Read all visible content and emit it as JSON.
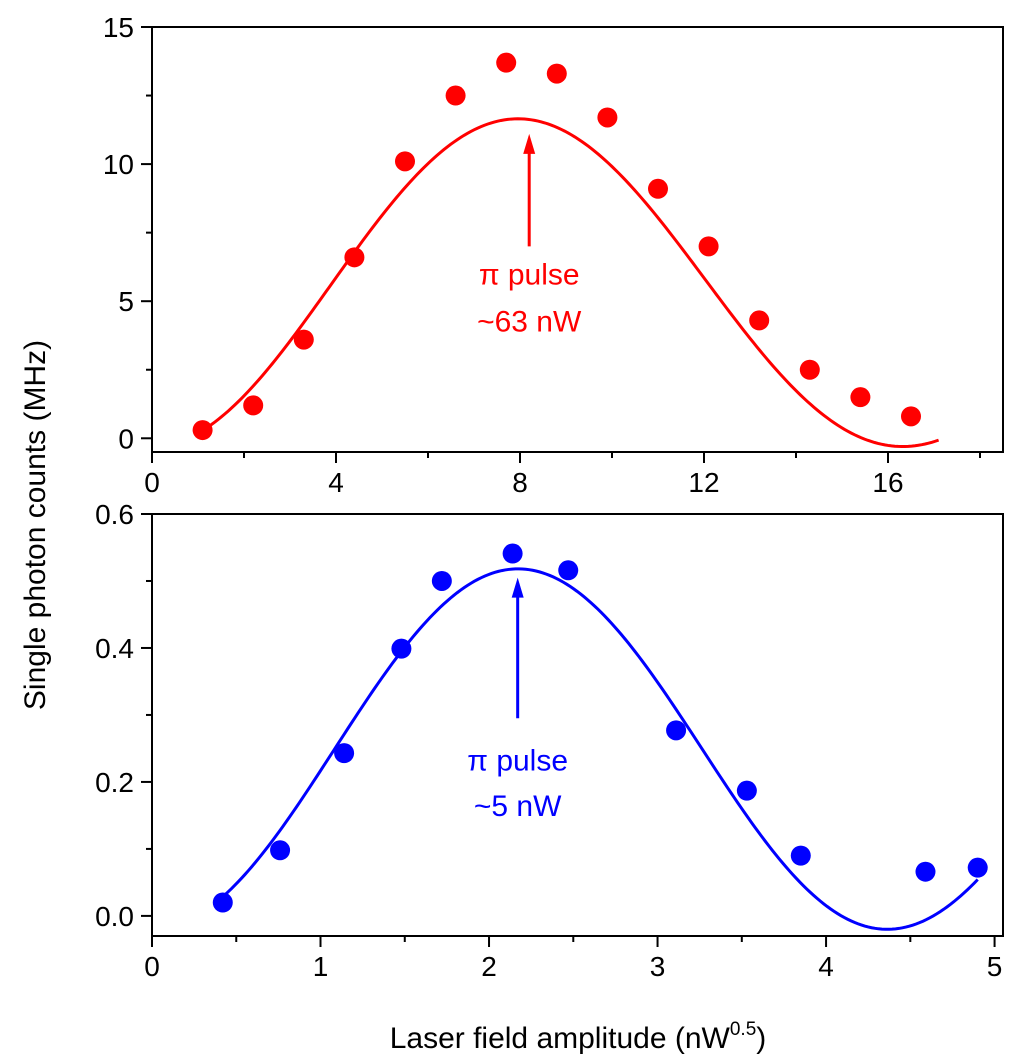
{
  "chart_data": [
    {
      "type": "scatter",
      "panel": "top",
      "color": "#ff0000",
      "xlim": [
        0,
        18.5
      ],
      "ylim": [
        -0.5,
        15
      ],
      "xticks": [
        0,
        4,
        8,
        12,
        16
      ],
      "xtick_labels": [
        "0",
        "4",
        "8",
        "12",
        "16"
      ],
      "yticks": [
        0,
        5,
        10,
        15
      ],
      "ytick_labels": [
        "0",
        "5",
        "10",
        "15"
      ],
      "x_minor_ticks": [
        2,
        6,
        10,
        14,
        18
      ],
      "y_minor_ticks": [
        2.5,
        7.5,
        12.5
      ],
      "series": [
        {
          "kind": "points",
          "x": [
            1.1,
            2.2,
            3.3,
            4.4,
            5.5,
            6.6,
            7.7,
            8.8,
            9.9,
            11.0,
            12.1,
            13.2,
            14.3,
            15.4,
            16.5
          ],
          "y": [
            0.3,
            1.2,
            3.6,
            6.6,
            10.1,
            12.5,
            13.7,
            13.3,
            11.7,
            9.1,
            7.0,
            4.3,
            2.5,
            1.5,
            0.8
          ]
        },
        {
          "kind": "fit",
          "model": "sin2",
          "params": {
            "amplitude": 13.5,
            "omega": 0.1925,
            "x0": 0.0,
            "offset": -0.3,
            "damping": 0.985,
            "xmin": 1.0,
            "xmax": 17.1
          }
        }
      ],
      "arrow": {
        "x": 8.2,
        "y_from": 7.0,
        "y_to": 11.1
      },
      "annotation": {
        "line1": "π pulse",
        "line2": "~63 nW",
        "x": 8.2,
        "y1": 5.6,
        "y2": 3.9
      }
    },
    {
      "type": "scatter",
      "panel": "bottom",
      "color": "#0000ff",
      "xlim": [
        0,
        5.05
      ],
      "ylim": [
        -0.03,
        0.6
      ],
      "xticks": [
        0,
        1,
        2,
        3,
        4,
        5
      ],
      "xtick_labels": [
        "0",
        "1",
        "2",
        "3",
        "4",
        "5"
      ],
      "yticks": [
        0.0,
        0.2,
        0.4,
        0.6
      ],
      "ytick_labels": [
        "0.0",
        "0.2",
        "0.4",
        "0.6"
      ],
      "x_minor_ticks": [
        0.5,
        1.5,
        2.5,
        3.5,
        4.5
      ],
      "y_minor_ticks": [
        0.1,
        0.3,
        0.5
      ],
      "series": [
        {
          "kind": "points",
          "x": [
            0.42,
            0.76,
            1.14,
            1.48,
            1.72,
            2.14,
            2.47,
            3.11,
            3.53,
            3.85,
            4.59,
            4.9
          ],
          "y": [
            0.02,
            0.098,
            0.243,
            0.399,
            0.5,
            0.541,
            0.516,
            0.277,
            0.187,
            0.09,
            0.066,
            0.072
          ]
        },
        {
          "kind": "fit",
          "model": "sin2",
          "params": {
            "amplitude": 0.55,
            "omega": 0.72,
            "x0": 0.0,
            "offset": -0.02,
            "damping": 0.99,
            "xmin": 0.43,
            "xmax": 4.9
          }
        }
      ],
      "arrow": {
        "x": 2.17,
        "y_from": 0.295,
        "y_to": 0.505
      },
      "annotation": {
        "line1": "π pulse",
        "line2": "~5 nW",
        "x": 2.17,
        "y1": 0.217,
        "y2": 0.149
      }
    }
  ],
  "ylabel": "Single photon counts (MHz)",
  "xlabel": "Laser field amplitude (nW",
  "xlabel_sup": "0.5",
  "xlabel_tail": ")"
}
